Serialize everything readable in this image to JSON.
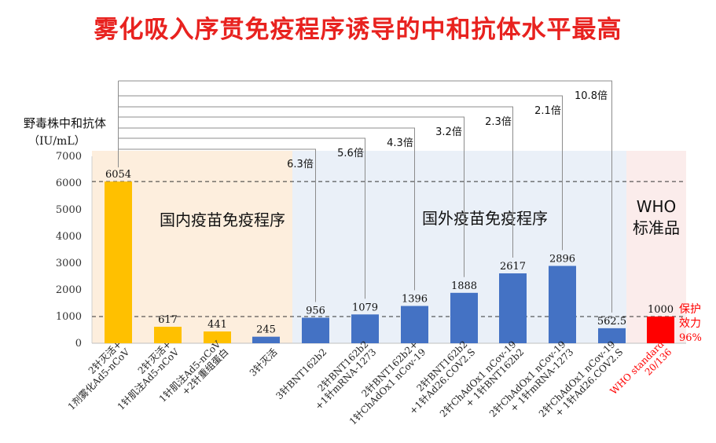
{
  "chart_data": {
    "type": "bar",
    "title": "雾化吸入序贯免疫程序诱导的中和抗体水平最高",
    "ylabel_line1": "野毒株中和抗体",
    "ylabel_line2": "（IU/mL）",
    "ylim": [
      0,
      7000
    ],
    "yticks": [
      0,
      1000,
      2000,
      3000,
      4000,
      5000,
      6000,
      7000
    ],
    "reference_lines": [
      6054,
      1000
    ],
    "categories": [
      [
        "2针灭活+",
        "1剂雾化Ad5-nCoV"
      ],
      [
        "2针灭活+",
        "1针肌注Ad5-nCoV"
      ],
      [
        "1针肌注Ad5-nCoV",
        "+2针重组蛋白"
      ],
      [
        "3针灭活"
      ],
      [
        "3针BNT162b2"
      ],
      [
        "2针BNT162b2",
        "+1针mRNA-1273"
      ],
      [
        "2针BNT162b2+",
        "1针ChAdOx1 nCov-19"
      ],
      [
        "2针BNT162b2",
        "+1针Ad26.COV2.S"
      ],
      [
        "2针ChAdOx1 nCov-19",
        "+ 1针BNT162b2"
      ],
      [
        "2针ChAdOx1 nCov-19",
        "+ 1针mRNA-1273"
      ],
      [
        "2针ChAdOx1 nCov-19",
        "+ 1针Ad26.COV2.S"
      ],
      [
        "WHO standard",
        "20/136"
      ]
    ],
    "values": [
      6054,
      617,
      441,
      245,
      956,
      1079,
      1396,
      1888,
      2617,
      2896,
      562.5,
      1000
    ],
    "value_labels": [
      "6054",
      "617",
      "441",
      "245",
      "956",
      "1079",
      "1396",
      "1888",
      "2617",
      "2896",
      "562.5",
      "1000"
    ],
    "bar_colors": [
      "#ffc000",
      "#ffc000",
      "#ffc000",
      "#4472c4",
      "#4472c4",
      "#4472c4",
      "#4472c4",
      "#4472c4",
      "#4472c4",
      "#4472c4",
      "#4472c4",
      "#ff0000"
    ],
    "regions": [
      {
        "label": "国内疫苗免疫程序",
        "color": "#fdeedd"
      },
      {
        "label": "国外疫苗免疫程序",
        "color": "#eaf0f8"
      },
      {
        "label_line1": "WHO",
        "label_line2": "标准品",
        "color": "#fbeceb"
      }
    ],
    "fold_comparisons": [
      {
        "target_index": 4,
        "label": "6.3倍"
      },
      {
        "target_index": 5,
        "label": "5.6倍"
      },
      {
        "target_index": 6,
        "label": "4.3倍"
      },
      {
        "target_index": 7,
        "label": "3.2倍"
      },
      {
        "target_index": 8,
        "label": "2.3倍"
      },
      {
        "target_index": 9,
        "label": "2.1倍"
      },
      {
        "target_index": 10,
        "label": "10.8倍"
      }
    ],
    "protection_note": [
      "保护",
      "效力",
      "96%"
    ],
    "colors": {
      "title": "#e8221f",
      "who": "#ff0000"
    }
  }
}
